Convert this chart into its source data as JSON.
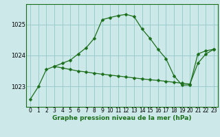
{
  "line1_x": [
    0,
    1,
    2,
    3,
    4,
    5,
    6,
    7,
    8,
    9,
    10,
    11,
    12,
    13,
    14,
    15,
    16,
    17,
    18,
    19,
    20,
    21,
    22,
    23
  ],
  "line1_y": [
    1022.6,
    1023.0,
    1023.55,
    1023.65,
    1023.75,
    1023.85,
    1024.05,
    1024.25,
    1024.55,
    1025.15,
    1025.22,
    1025.28,
    1025.32,
    1025.25,
    1024.85,
    1024.55,
    1024.2,
    1023.9,
    1023.35,
    1023.05,
    1023.05,
    1024.05,
    1024.15,
    1024.2
  ],
  "line2_x": [
    3,
    4,
    5,
    6,
    7,
    8,
    9,
    10,
    11,
    12,
    13,
    14,
    15,
    16,
    17,
    18,
    19,
    20,
    21,
    22,
    23
  ],
  "line2_y": [
    1023.65,
    1023.6,
    1023.55,
    1023.5,
    1023.47,
    1023.43,
    1023.4,
    1023.37,
    1023.34,
    1023.31,
    1023.28,
    1023.25,
    1023.22,
    1023.2,
    1023.17,
    1023.14,
    1023.11,
    1023.08,
    1023.75,
    1024.05,
    1024.2
  ],
  "line_color": "#1a6e1a",
  "bg_color": "#cce8e8",
  "grid_color": "#99cccc",
  "xlabel": "Graphe pression niveau de la mer (hPa)",
  "yticks": [
    1023,
    1024,
    1025
  ],
  "ylim": [
    1022.35,
    1025.65
  ],
  "xlim": [
    -0.5,
    23.5
  ],
  "xticks": [
    0,
    1,
    2,
    3,
    4,
    5,
    6,
    7,
    8,
    9,
    10,
    11,
    12,
    13,
    14,
    15,
    16,
    17,
    18,
    19,
    20,
    21,
    22,
    23
  ],
  "xtick_labels": [
    "0",
    "1",
    "2",
    "3",
    "4",
    "5",
    "6",
    "7",
    "8",
    "9",
    "10",
    "11",
    "12",
    "13",
    "14",
    "15",
    "16",
    "17",
    "18",
    "19",
    "20",
    "21",
    "22",
    "23"
  ],
  "tick_fontsize": 5.5,
  "ytick_fontsize": 6.0,
  "xlabel_fontsize": 6.5,
  "marker_size": 2.5,
  "line_width": 0.9
}
